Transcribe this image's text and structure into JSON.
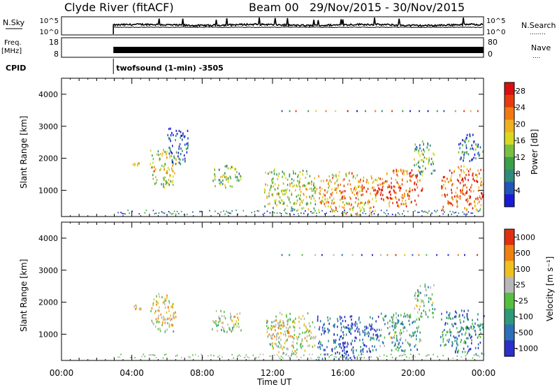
{
  "header": {
    "station": "Clyde River (fitACF)",
    "beam": "Beam 00",
    "dates": "29/Nov/2015 - 30/Nov/2015"
  },
  "strip_sky": {
    "label": "N.Sky",
    "left_ticks": [
      "10^5",
      "10^0"
    ],
    "right_ticks": [
      "10^5",
      "10^0"
    ],
    "right_label": "N.Search",
    "right_dots": "........"
  },
  "strip_freq": {
    "label_line1": "Freq.",
    "label_line2": "[MHz]",
    "left_ticks": [
      "18",
      "8"
    ],
    "right_ticks": [
      "80",
      "0"
    ],
    "right_label": "Nave",
    "right_dots": "...."
  },
  "cpid": {
    "label": "CPID",
    "program": "twofsound (1-min) -3505"
  },
  "time_axis": {
    "title": "Time UT",
    "ticks": [
      "00:00",
      "04:00",
      "08:00",
      "12:00",
      "16:00",
      "20:00",
      "00:00"
    ]
  },
  "chart_data": [
    {
      "type": "heatmap",
      "title": "",
      "xlabel": "Time UT",
      "ylabel": "Slant Range [km]",
      "x_ticks_hours": [
        0,
        4,
        8,
        12,
        16,
        20,
        24
      ],
      "ylim": [
        180,
        4500
      ],
      "y_ticks": [
        1000,
        2000,
        3000,
        4000
      ],
      "colorbar": {
        "label": "Power [dB]",
        "range": [
          0,
          30
        ],
        "ticks": [
          "4",
          "8",
          "12",
          "16",
          "20",
          "24",
          "28"
        ],
        "colors": [
          "#1a1ad6",
          "#2255b8",
          "#2e8a7a",
          "#3aa04a",
          "#78c040",
          "#d8d820",
          "#f0b020",
          "#f07a10",
          "#e83a10",
          "#d81010"
        ]
      },
      "echo_regions": [
        {
          "t": [
            4.0,
            4.5
          ],
          "r": [
            1650,
            2000
          ],
          "level": 0.55
        },
        {
          "t": [
            5.0,
            6.5
          ],
          "r": [
            1100,
            2300
          ],
          "level": 0.6
        },
        {
          "t": [
            6.0,
            7.2
          ],
          "r": [
            1800,
            3000
          ],
          "level": 0.2
        },
        {
          "t": [
            8.5,
            10.2
          ],
          "r": [
            1100,
            1800
          ],
          "level": 0.45
        },
        {
          "t": [
            11.5,
            14.5
          ],
          "r": [
            400,
            1700
          ],
          "level": 0.55
        },
        {
          "t": [
            14.5,
            18.0
          ],
          "r": [
            200,
            1600
          ],
          "level": 0.75
        },
        {
          "t": [
            18.0,
            20.5
          ],
          "r": [
            500,
            1700
          ],
          "level": 0.9
        },
        {
          "t": [
            20.0,
            21.2
          ],
          "r": [
            1500,
            2600
          ],
          "level": 0.45
        },
        {
          "t": [
            21.5,
            24.0
          ],
          "r": [
            400,
            1800
          ],
          "level": 0.85
        },
        {
          "t": [
            22.5,
            24.0
          ],
          "r": [
            1900,
            2800
          ],
          "level": 0.3
        }
      ],
      "top_streak_range_km": 3500
    },
    {
      "type": "heatmap",
      "title": "",
      "xlabel": "Time UT",
      "ylabel": "Slant Range [km]",
      "x_ticks_hours": [
        0,
        4,
        8,
        12,
        16,
        20,
        24
      ],
      "ylim": [
        180,
        4500
      ],
      "y_ticks": [
        1000,
        2000,
        3000,
        4000
      ],
      "colorbar": {
        "label": "Velocity [m s⁻¹]",
        "range": [
          -1200,
          1200
        ],
        "ticks": [
          "1000",
          "500",
          "100",
          "25",
          "-25",
          "-100",
          "-500",
          "-1000"
        ],
        "colors": [
          "#2a30c8",
          "#2c70b8",
          "#2e9a78",
          "#55c040",
          "#b8b8b8",
          "#f0c020",
          "#f08010",
          "#e03010"
        ]
      },
      "echo_regions": [
        {
          "t": [
            4.0,
            4.5
          ],
          "r": [
            1650,
            2000
          ],
          "level": 0.75
        },
        {
          "t": [
            5.0,
            6.5
          ],
          "r": [
            1100,
            2300
          ],
          "level": 0.7
        },
        {
          "t": [
            8.5,
            10.2
          ],
          "r": [
            1100,
            1800
          ],
          "level": 0.6
        },
        {
          "t": [
            11.5,
            14.5
          ],
          "r": [
            400,
            1700
          ],
          "level": 0.65
        },
        {
          "t": [
            14.5,
            18.0
          ],
          "r": [
            200,
            1600
          ],
          "level": 0.2
        },
        {
          "t": [
            18.0,
            20.5
          ],
          "r": [
            500,
            1700
          ],
          "level": 0.45
        },
        {
          "t": [
            20.0,
            21.2
          ],
          "r": [
            1500,
            2600
          ],
          "level": 0.5
        },
        {
          "t": [
            21.5,
            24.0
          ],
          "r": [
            400,
            1800
          ],
          "level": 0.3
        }
      ],
      "top_streak_range_km": 3500
    }
  ],
  "data_start_hour": 2.95
}
